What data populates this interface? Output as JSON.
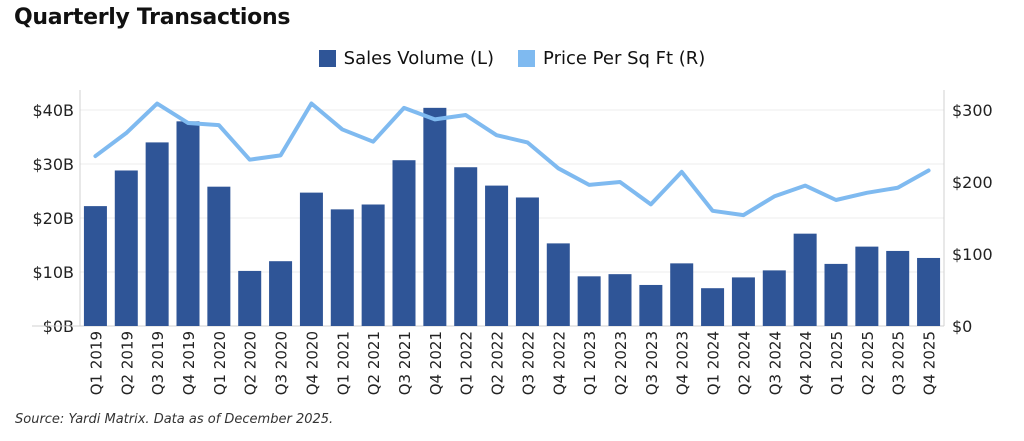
{
  "title": "Quarterly Transactions",
  "source": "Source: Yardi Matrix. Data as of December 2025.",
  "chart_data": {
    "type": "bar+line",
    "title": "Quarterly Transactions",
    "categories": [
      "Q1 2019",
      "Q2 2019",
      "Q3 2019",
      "Q4 2019",
      "Q1 2020",
      "Q2 2020",
      "Q3 2020",
      "Q4 2020",
      "Q1 2021",
      "Q2 2021",
      "Q3 2021",
      "Q4 2021",
      "Q1 2022",
      "Q2 2022",
      "Q3 2022",
      "Q4 2022",
      "Q1 2023",
      "Q2 2023",
      "Q3 2023",
      "Q4 2023",
      "Q1 2024",
      "Q2 2024",
      "Q3 2024",
      "Q4 2024",
      "Q1 2025",
      "Q2 2025",
      "Q3 2025",
      "Q4 2025"
    ],
    "series": [
      {
        "name": "Sales Volume (L)",
        "type": "bar",
        "axis": "left",
        "color": "#2f5597",
        "values": [
          22.2,
          28.8,
          34.0,
          37.9,
          25.8,
          10.2,
          12.0,
          24.7,
          21.6,
          22.5,
          30.7,
          40.4,
          29.4,
          26.0,
          23.8,
          15.3,
          9.2,
          9.6,
          7.6,
          11.6,
          7.0,
          9.0,
          10.3,
          17.1,
          11.5,
          14.7,
          13.9,
          12.6
        ]
      },
      {
        "name": "Price Per Sq Ft (R)",
        "type": "line",
        "axis": "right",
        "color": "#7fbaf0",
        "values": [
          236,
          268,
          309,
          282,
          279,
          231,
          237,
          309,
          273,
          256,
          303,
          287,
          293,
          265,
          255,
          219,
          196,
          200,
          169,
          214,
          160,
          154,
          180,
          195,
          175,
          185,
          192,
          216
        ]
      }
    ],
    "left_axis": {
      "ylim": [
        0,
        40
      ],
      "ticks": [
        0,
        10,
        20,
        30,
        40
      ],
      "tick_labels": [
        "$0B",
        "$10B",
        "$20B",
        "$30B",
        "$40B"
      ]
    },
    "right_axis": {
      "ylim": [
        0,
        300
      ],
      "ticks": [
        0,
        100,
        200,
        300
      ],
      "tick_labels": [
        "$0",
        "$100",
        "$200",
        "$300"
      ]
    },
    "grid": true,
    "legend": "top-center"
  }
}
